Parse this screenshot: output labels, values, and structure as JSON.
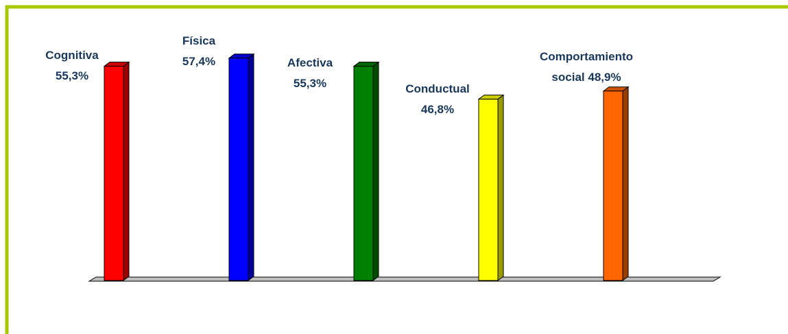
{
  "chart_data": {
    "type": "bar3d",
    "categories": [
      "Cognitiva",
      "Física",
      "Afectiva",
      "Conductual",
      "Comportamiento social"
    ],
    "values": [
      55.3,
      57.4,
      55.3,
      46.8,
      48.9
    ],
    "value_labels": [
      "55,3%",
      "57,4%",
      "55,3%",
      "46,8%",
      "48,9%"
    ],
    "colors": [
      "#ff0000",
      "#0000ff",
      "#008000",
      "#ffff00",
      "#ff6600"
    ]
  }
}
